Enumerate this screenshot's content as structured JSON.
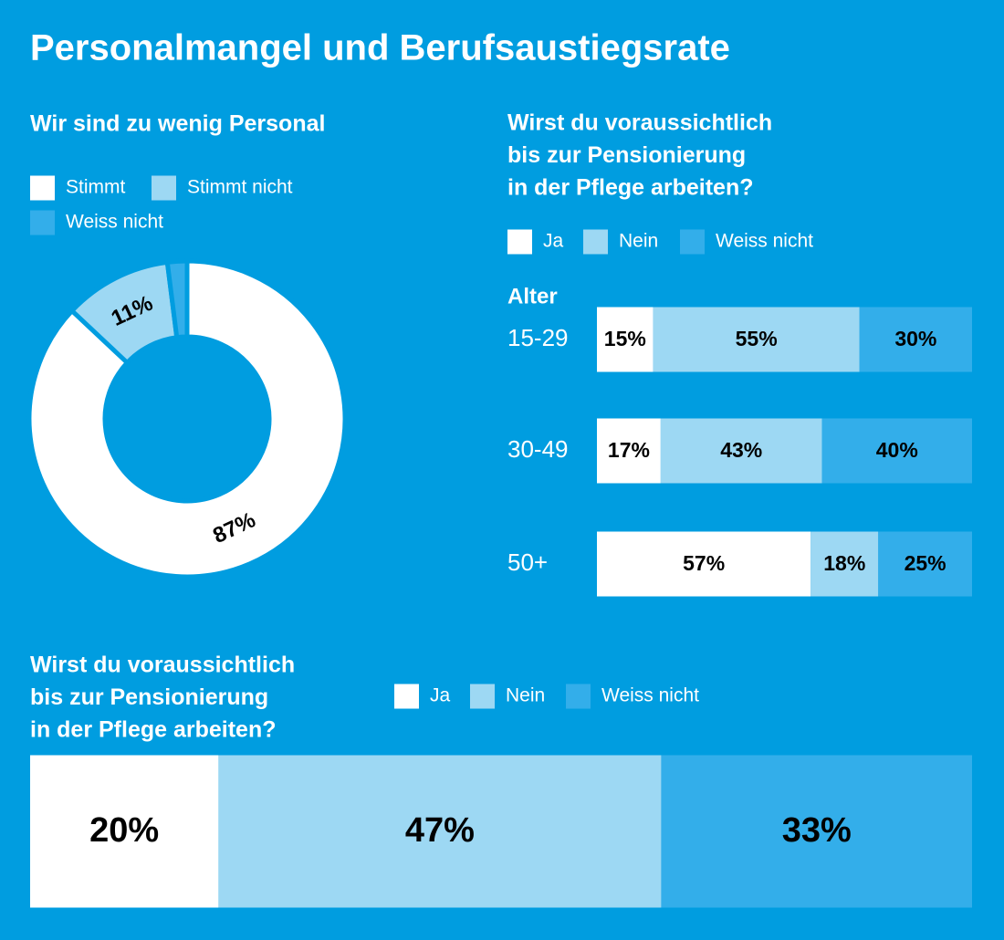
{
  "title": "Personalmangel und Berufsaustiegsrate",
  "chart_data": [
    {
      "type": "donut",
      "title": "Wir sind zu wenig Personal",
      "categories": [
        "Stimmt",
        "Stimmt nicht",
        "Weiss nicht"
      ],
      "values": [
        87,
        11,
        2
      ],
      "value_labels": [
        "87%",
        "11%",
        null
      ],
      "colors": [
        "#ffffff",
        "#9dd8f3",
        "#33aeea"
      ]
    },
    {
      "type": "stacked-bar",
      "title": [
        "Wirst du voraussichtlich",
        "bis zur Pensionierung",
        "in der Pflege arbeiten?"
      ],
      "y_label": "Alter",
      "categories": [
        "15-29",
        "30-49",
        "50+"
      ],
      "xlim": [
        0,
        100
      ],
      "series": [
        {
          "name": "Ja",
          "color": "#ffffff",
          "values": [
            15,
            17,
            57
          ],
          "value_labels": [
            "15%",
            "17%",
            "57%"
          ]
        },
        {
          "name": "Nein",
          "color": "#9dd8f3",
          "values": [
            55,
            43,
            18
          ],
          "value_labels": [
            "55%",
            "43%",
            "18%"
          ]
        },
        {
          "name": "Weiss nicht",
          "color": "#33aeea",
          "values": [
            30,
            40,
            25
          ],
          "value_labels": [
            "30%",
            "40%",
            "25%"
          ]
        }
      ]
    },
    {
      "type": "stacked-bar",
      "title": [
        "Wirst du voraussichtlich",
        "bis zur Pensionierung",
        "in der Pflege arbeiten?"
      ],
      "categories": [
        null
      ],
      "xlim": [
        0,
        100
      ],
      "series": [
        {
          "name": "Ja",
          "color": "#ffffff",
          "values": [
            20
          ],
          "value_labels": [
            "20%"
          ]
        },
        {
          "name": "Nein",
          "color": "#9dd8f3",
          "values": [
            47
          ],
          "value_labels": [
            "47%"
          ]
        },
        {
          "name": "Weiss nicht",
          "color": "#33aeea",
          "values": [
            33
          ],
          "value_labels": [
            "33%"
          ]
        }
      ]
    }
  ]
}
